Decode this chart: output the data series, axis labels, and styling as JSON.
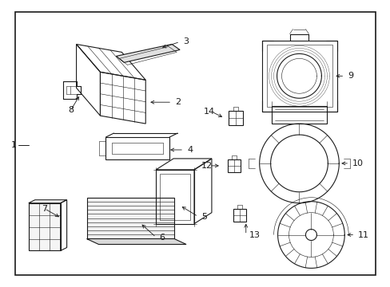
{
  "bg_color": "#ffffff",
  "border_color": "#1a1a1a",
  "line_color": "#1a1a1a",
  "label_color": "#1a1a1a",
  "fig_width": 4.89,
  "fig_height": 3.6,
  "lw_main": 0.8,
  "lw_thin": 0.4,
  "lw_border": 1.2,
  "font_size": 7.5
}
